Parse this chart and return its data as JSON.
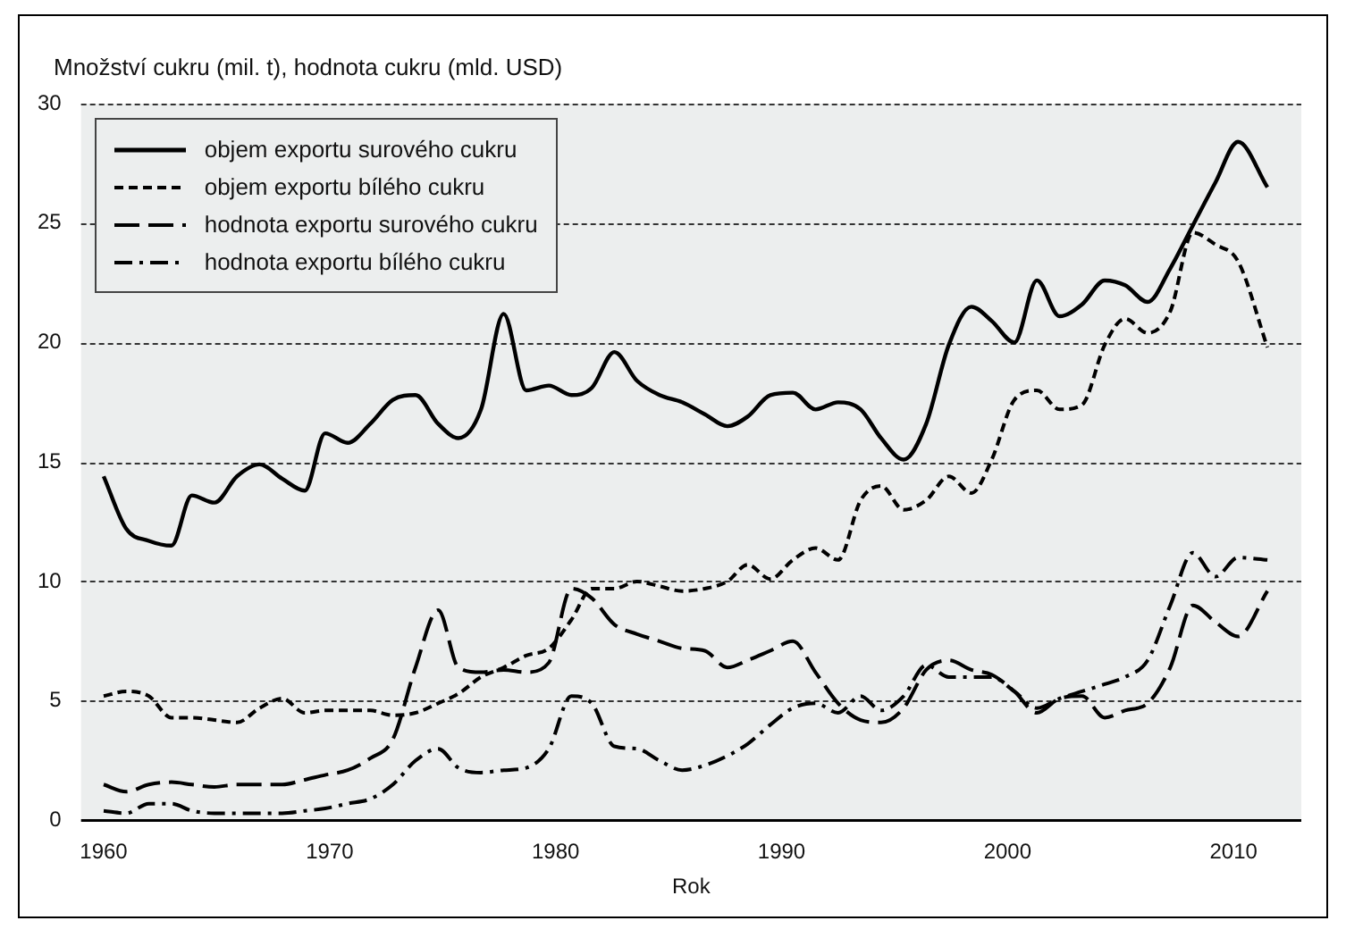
{
  "chart_data": {
    "type": "line",
    "ylabel": "Množství cukru (mil. t), hodnota cukru (mld. USD)",
    "xlabel": "Rok",
    "x": [
      1960,
      1961,
      1962,
      1963,
      1963.9,
      1964.9,
      1965.9,
      1966.9,
      1967.9,
      1968.9,
      1969.8,
      1970.8,
      1971.8,
      1972.8,
      1973.8,
      1974.8,
      1975.7,
      1976.7,
      1977.7,
      1978.7,
      1979.7,
      1980.7,
      1981.6,
      1982.6,
      1983.6,
      1984.6,
      1985.6,
      1986.6,
      1987.6,
      1988.5,
      1989.5,
      1990.5,
      1991.5,
      1992.5,
      1993.5,
      1994.4,
      1995.4,
      1996.4,
      1997.4,
      1998.4,
      1999.3,
      2000.3,
      2001.3,
      2002.3,
      2003.3,
      2004.3,
      2005.2,
      2006.2,
      2007.2,
      2008.2,
      2009.2,
      2010.2,
      2011.5
    ],
    "series": [
      {
        "name": "objem exportu surového cukru",
        "color": "#000000",
        "line_style": "solid",
        "values": [
          14.4,
          12.2,
          11.7,
          11.5,
          13.6,
          13.3,
          14.4,
          14.9,
          14.3,
          13.8,
          16.2,
          15.8,
          16.6,
          17.6,
          17.8,
          16.6,
          16.0,
          17.2,
          21.2,
          18.0,
          18.2,
          17.8,
          18.1,
          19.6,
          18.4,
          17.8,
          17.5,
          17.0,
          16.5,
          16.9,
          17.8,
          17.9,
          17.2,
          17.5,
          17.2,
          16.0,
          15.1,
          16.6,
          19.9,
          21.5,
          20.9,
          20.0,
          22.6,
          21.1,
          21.6,
          22.6,
          22.4,
          21.7,
          23.1,
          24.9,
          26.7,
          28.4,
          26.5
        ]
      },
      {
        "name": "objem exportu bílého cukru",
        "color": "#000000",
        "line_style": "dashed",
        "values": [
          5.2,
          5.4,
          5.2,
          4.3,
          4.3,
          4.2,
          4.1,
          4.7,
          5.1,
          4.5,
          4.6,
          4.6,
          4.6,
          4.4,
          4.5,
          4.9,
          5.3,
          6.0,
          6.4,
          6.9,
          7.2,
          8.4,
          9.7,
          9.7,
          10.0,
          9.8,
          9.6,
          9.7,
          10.0,
          10.7,
          10.1,
          10.9,
          11.4,
          10.9,
          13.4,
          14.0,
          13.0,
          13.4,
          14.4,
          13.7,
          15.1,
          17.6,
          18.0,
          17.2,
          17.4,
          19.9,
          21.0,
          20.4,
          21.3,
          24.6,
          24.1,
          23.4,
          19.8
        ]
      },
      {
        "name": "hodnota exportu surového cukru",
        "color": "#000000",
        "line_style": "longdash",
        "values": [
          1.5,
          1.2,
          1.5,
          1.6,
          1.5,
          1.4,
          1.5,
          1.5,
          1.5,
          1.7,
          1.9,
          2.1,
          2.6,
          3.4,
          6.4,
          8.8,
          6.4,
          6.2,
          6.3,
          6.2,
          6.6,
          9.7,
          9.3,
          8.2,
          7.8,
          7.5,
          7.2,
          7.1,
          6.4,
          6.7,
          7.1,
          7.5,
          6.2,
          4.9,
          4.2,
          4.1,
          4.7,
          6.3,
          6.7,
          6.3,
          6.1,
          5.4,
          4.5,
          5.1,
          5.2,
          4.3,
          4.6,
          4.9,
          6.4,
          9.0,
          8.3,
          7.7,
          9.6
        ]
      },
      {
        "name": "hodnota exportu bílého cukru",
        "color": "#000000",
        "line_style": "dashdot",
        "values": [
          0.4,
          0.3,
          0.7,
          0.7,
          0.4,
          0.3,
          0.3,
          0.3,
          0.3,
          0.4,
          0.5,
          0.7,
          0.9,
          1.5,
          2.5,
          3.0,
          2.2,
          2.0,
          2.1,
          2.2,
          3.0,
          5.2,
          4.9,
          3.1,
          3.0,
          2.5,
          2.1,
          2.3,
          2.7,
          3.2,
          4.0,
          4.7,
          4.9,
          4.5,
          5.2,
          4.6,
          5.2,
          6.5,
          6.0,
          6.0,
          6.0,
          5.4,
          4.7,
          5.1,
          5.4,
          5.7,
          6.0,
          6.7,
          9.0,
          11.2,
          10.2,
          11.0,
          10.9
        ]
      }
    ],
    "xlim": [
      1959,
      2013
    ],
    "xticks": [
      1960,
      1970,
      1980,
      1990,
      2000,
      2010
    ],
    "ylim": [
      0,
      30
    ],
    "yticks": [
      0,
      5,
      10,
      15,
      20,
      25,
      30
    ],
    "grid": "y",
    "legend": "top left",
    "marker": "none"
  }
}
